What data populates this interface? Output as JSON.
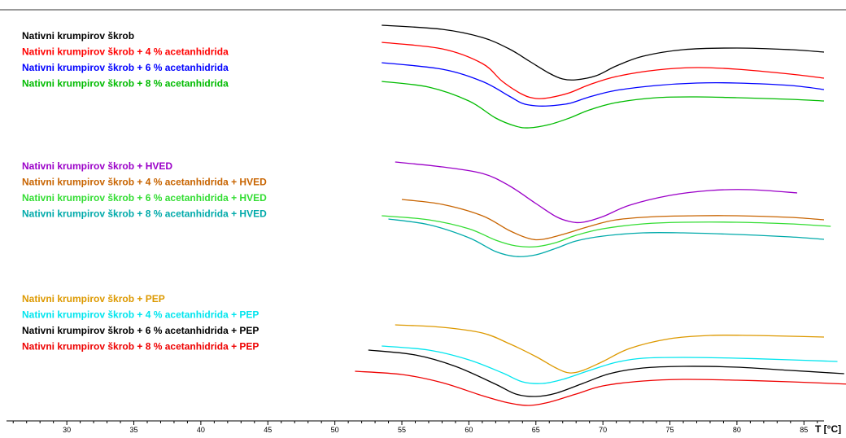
{
  "chart_data": {
    "type": "line",
    "x_axis": {
      "label": "T [°C]",
      "range": [
        25.5,
        86.5
      ],
      "major_ticks": [
        30,
        35,
        40,
        45,
        50,
        55,
        60,
        65,
        70,
        75,
        80,
        85
      ],
      "tick_labels": [
        "30",
        "35",
        "40",
        "45",
        "50",
        "55",
        "60",
        "65",
        "70",
        "75",
        "80",
        "85"
      ]
    },
    "y_axis": {
      "label": "",
      "tick_labels": []
    },
    "grid": false,
    "legend_placement": "left, grouped",
    "groups": [
      {
        "legend": [
          {
            "name": "Nativni krumpirov škrob",
            "color": "#000000"
          },
          {
            "name": "Nativni krumpirov škrob + 4 % acetanhidrida",
            "color": "#ff0000"
          },
          {
            "name": "Nativni krumpirov škrob + 6 % acetanhidrida",
            "color": "#0000ff"
          },
          {
            "name": "Nativni krumpirov škrob + 8 % acetanhidrida",
            "color": "#00bb00"
          }
        ],
        "series": [
          {
            "name": "Nativni krumpirov škrob",
            "color": "#000000",
            "x": [
              53.5,
              58,
              61,
              63,
              64.5,
              66,
              67,
              68,
              69.5,
              71,
              73,
              76,
              80,
              84,
              86.5
            ],
            "y": [
              31,
              36,
              46,
              60,
              75,
              90,
              97,
              98,
              93,
              81,
              69,
              61,
              59,
              61,
              64
            ]
          },
          {
            "name": "Nativni krumpirov škrob + 4 % acetanhidrida",
            "color": "#ff0000",
            "x": [
              53.5,
              58,
              61,
              62.5,
              64,
              65,
              66,
              67.5,
              69,
              71,
              74,
              77,
              80,
              84,
              86.5
            ],
            "y": [
              52,
              60,
              78,
              100,
              116,
              121,
              120,
              114,
              104,
              94,
              86,
              83,
              85,
              91,
              96
            ]
          },
          {
            "name": "Nativni krumpirov škrob + 6 % acetanhidrida",
            "color": "#0000ff",
            "x": [
              53.5,
              58,
              61,
              63,
              64,
              65,
              66,
              67.5,
              69,
              71,
              74,
              77,
              80,
              84,
              86.5
            ],
            "y": [
              77,
              85,
              100,
              118,
              127,
              130,
              130,
              127,
              119,
              111,
              105,
              102,
              102,
              105,
              110
            ]
          },
          {
            "name": "Nativni krumpirov škrob + 8 % acetanhidrida",
            "color": "#00bb00",
            "x": [
              53.5,
              57,
              60,
              62,
              63.5,
              64.5,
              66,
              67.5,
              69,
              71,
              74,
              77,
              80,
              84,
              86.5
            ],
            "y": [
              100,
              107,
              124,
              145,
              155,
              157,
              153,
              145,
              135,
              126,
              120,
              119,
              120,
              122,
              124
            ]
          }
        ]
      },
      {
        "legend": [
          {
            "name": "Nativni krumpirov škrob + HVED",
            "color": "#9b00c8"
          },
          {
            "name": "Nativni krumpirov škrob + 4 % acetanhidrida + HVED",
            "color": "#c86400"
          },
          {
            "name": "Nativni krumpirov škrob + 6 % acetanhidrida + HVED",
            "color": "#33dd33"
          },
          {
            "name": "Nativni krumpirov škrob + 8 % acetanhidrida + HVED",
            "color": "#00aaaa"
          }
        ],
        "series": [
          {
            "name": "Nativni krumpirov škrob + HVED",
            "color": "#9b00c8",
            "x": [
              54.5,
              58,
              61,
              63,
              65,
              66.5,
              67.5,
              68.5,
              70,
              72,
              75,
              78,
              81,
              84.5
            ],
            "y": [
              199,
              205,
              213,
              228,
              250,
              266,
              272,
              273,
              266,
              252,
              240,
              234,
              233,
              237
            ]
          },
          {
            "name": "Nativni krumpirov škrob + 4 % acetanhidrida + HVED",
            "color": "#c86400",
            "x": [
              55,
              58,
              61,
              63,
              64.5,
              65.5,
              67,
              69,
              71,
              74,
              77,
              80,
              84,
              86.5
            ],
            "y": [
              245,
              251,
              265,
              283,
              293,
              294,
              288,
              278,
              270,
              266,
              265,
              265,
              267,
              270
            ]
          },
          {
            "name": "Nativni krumpirov škrob + 6 % acetanhidrida + HVED",
            "color": "#33dd33",
            "x": [
              53.5,
              57,
              60,
              62,
              63.5,
              65,
              66.5,
              68,
              70,
              73,
              76,
              80,
              84,
              87
            ],
            "y": [
              265,
              270,
              281,
              295,
              302,
              303,
              298,
              289,
              281,
              275,
              273,
              273,
              275,
              278
            ]
          },
          {
            "name": "Nativni krumpirov škrob + 8 % acetanhidrida + HVED",
            "color": "#00aaaa",
            "x": [
              54,
              57,
              60,
              62,
              63.5,
              65,
              66.5,
              68,
              70,
              73,
              76,
              80,
              84,
              86.5
            ],
            "y": [
              269,
              276,
              292,
              309,
              315,
              313,
              305,
              296,
              290,
              286,
              286,
              288,
              291,
              294
            ]
          }
        ]
      },
      {
        "legend": [
          {
            "name": "Nativni krumpirov škrob + PEP",
            "color": "#dd9900"
          },
          {
            "name": "Nativni krumpirov škrob + 4 % acetanhidrida + PEP",
            "color": "#00e5ee"
          },
          {
            "name": "Nativni krumpirov škrob + 6 % acetanhidrida + PEP",
            "color": "#000000"
          },
          {
            "name": "Nativni krumpirov škrob + 8 % acetanhidrida + PEP",
            "color": "#ee0000"
          }
        ],
        "series": [
          {
            "name": "Nativni krumpirov škrob + PEP",
            "color": "#dd9900",
            "x": [
              54.5,
              58,
              61,
              63,
              65,
              66.5,
              67.5,
              68.5,
              70,
              72,
              75,
              78,
              81,
              84,
              86.5
            ],
            "y": [
              399,
              402,
              409,
              422,
              438,
              452,
              458,
              455,
              444,
              428,
              416,
              412,
              412,
              413,
              414
            ]
          },
          {
            "name": "Nativni krumpirov škrob + 4 % acetanhidrida + PEP",
            "color": "#00e5ee",
            "x": [
              53.5,
              57,
              60,
              62.5,
              64,
              65.5,
              67,
              69,
              71,
              73,
              76,
              80,
              84,
              87.5
            ],
            "y": [
              425,
              430,
              442,
              458,
              469,
              471,
              466,
              455,
              445,
              440,
              439,
              440,
              442,
              444
            ]
          },
          {
            "name": "Nativni krumpirov škrob + 6 % acetanhidrida + PEP",
            "color": "#000000",
            "x": [
              52.5,
              56,
              59,
              62,
              63.5,
              65,
              66.5,
              68.5,
              70.5,
              73,
              76,
              80,
              84,
              88
            ],
            "y": [
              430,
              436,
              450,
              472,
              484,
              487,
              483,
              471,
              459,
              452,
              450,
              451,
              455,
              459
            ]
          },
          {
            "name": "Nativni krumpirov škrob + 8 % acetanhidrida + PEP",
            "color": "#ee0000",
            "x": [
              51.5,
              55,
              58,
              61,
              63,
              64.5,
              66,
              68,
              70,
              73,
              76,
              80,
              84,
              88.5
            ],
            "y": [
              456,
              460,
              470,
              486,
              495,
              498,
              494,
              484,
              474,
              468,
              466,
              467,
              469,
              472
            ]
          }
        ]
      }
    ]
  }
}
